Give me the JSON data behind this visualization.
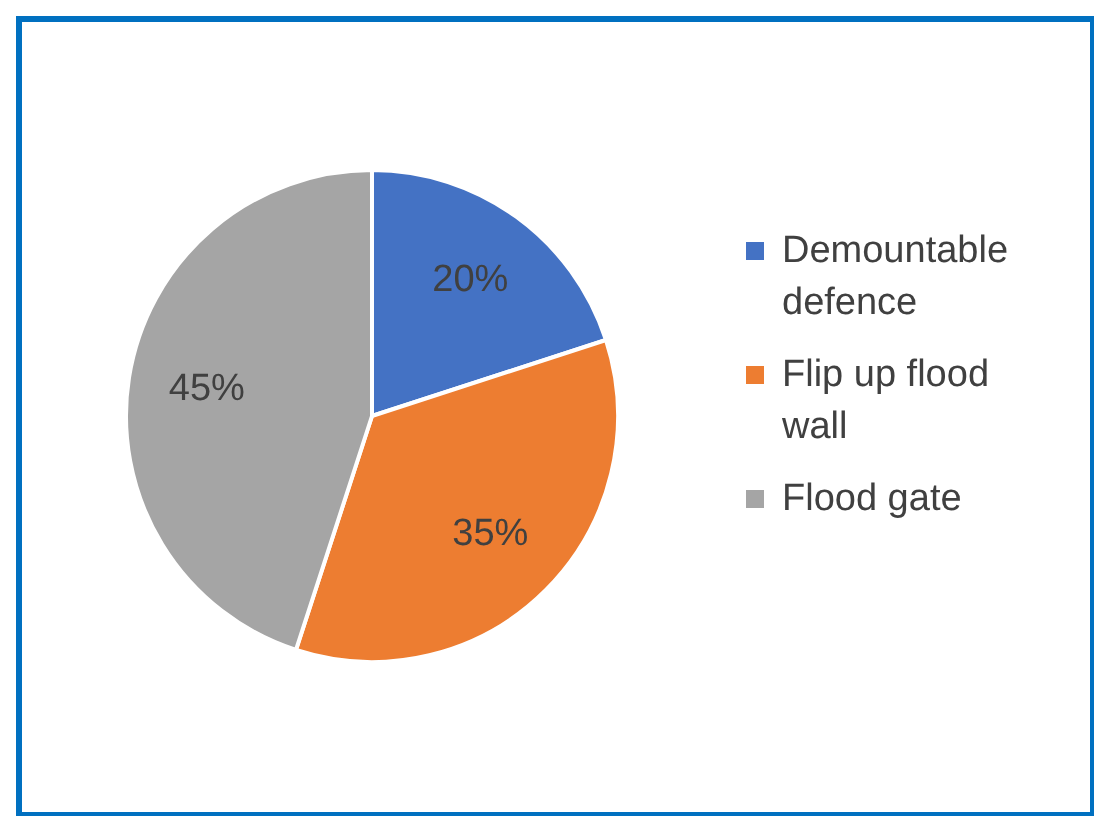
{
  "chart_data": {
    "type": "pie",
    "categories": [
      "Demountable defence",
      "Flip up flood wall",
      "Flood gate"
    ],
    "values": [
      20,
      35,
      45
    ],
    "colors": [
      "#4472c4",
      "#ed7d31",
      "#a5a5a5"
    ],
    "value_labels": [
      "20%",
      "35%",
      "45%"
    ],
    "legend": "right"
  }
}
